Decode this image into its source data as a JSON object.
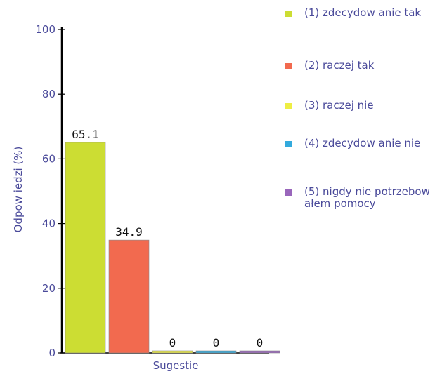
{
  "chart_data": {
    "type": "bar",
    "categories": [
      "(1) zdecydow anie tak",
      "(2) raczej tak",
      "(3) raczej nie",
      "(4) zdecydow anie nie",
      "(5) nigdy nie potrzebow ałem pomocy"
    ],
    "values": [
      65.1,
      34.9,
      0,
      0,
      0
    ],
    "value_labels": [
      "65.1",
      "34.9",
      "0",
      "0",
      "0"
    ],
    "colors": [
      "#ccdd33",
      "#f26a4f",
      "#eeee44",
      "#33aadd",
      "#9966bb"
    ],
    "xlabel": "Sugestie",
    "ylabel": "Odpow iedzi (%)",
    "ylim": [
      0,
      100
    ],
    "yticks": [
      "0",
      "20",
      "40",
      "60",
      "80",
      "100"
    ],
    "legend_position": "right",
    "grid": false
  },
  "legend": {
    "items": [
      {
        "label": "(1) zdecydow anie tak",
        "color": "#ccdd33"
      },
      {
        "label": "(2) raczej tak",
        "color": "#f26a4f"
      },
      {
        "label": "(3) raczej nie",
        "color": "#eeee44"
      },
      {
        "label": "(4) zdecydow anie nie",
        "color": "#33aadd"
      },
      {
        "label": "(5) nigdy nie potrzebow ałem pomocy",
        "color": "#9966bb"
      }
    ]
  }
}
